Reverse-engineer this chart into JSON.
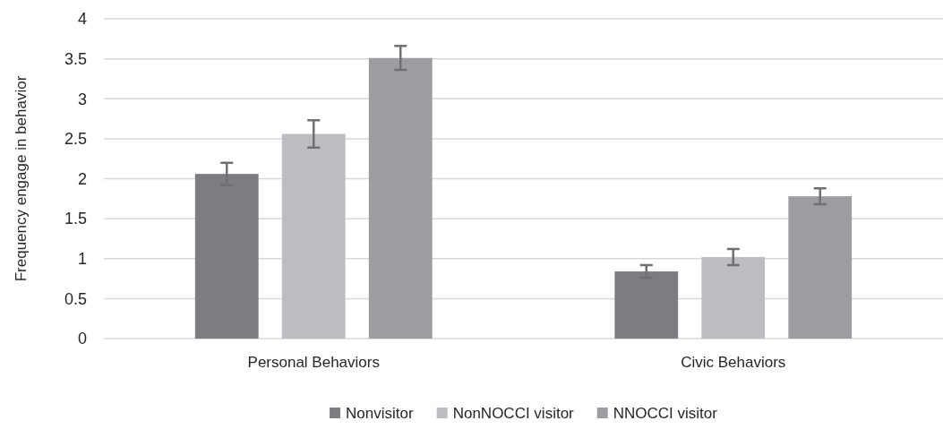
{
  "chart_data": {
    "type": "bar",
    "ylabel": "Frequency engage in behavior",
    "categories": [
      "Personal Behaviors",
      "Civic Behaviors"
    ],
    "series": [
      {
        "name": "Nonvisitor",
        "color": "#7c7d81",
        "values": [
          2.06,
          0.84
        ],
        "errors": [
          0.14,
          0.08
        ]
      },
      {
        "name": "NonNOCCI visitor",
        "color": "#bcbdc0",
        "values": [
          2.56,
          1.02
        ],
        "errors": [
          0.17,
          0.1
        ]
      },
      {
        "name": "NNOCCI visitor",
        "color": "#9c9da1",
        "values": [
          3.51,
          1.78
        ],
        "errors": [
          0.15,
          0.1
        ]
      }
    ],
    "ylim": [
      0,
      4
    ],
    "yticks": [
      0,
      0.5,
      1,
      1.5,
      2,
      2.5,
      3,
      3.5,
      4
    ],
    "grid": "y",
    "legend": "bottom"
  }
}
